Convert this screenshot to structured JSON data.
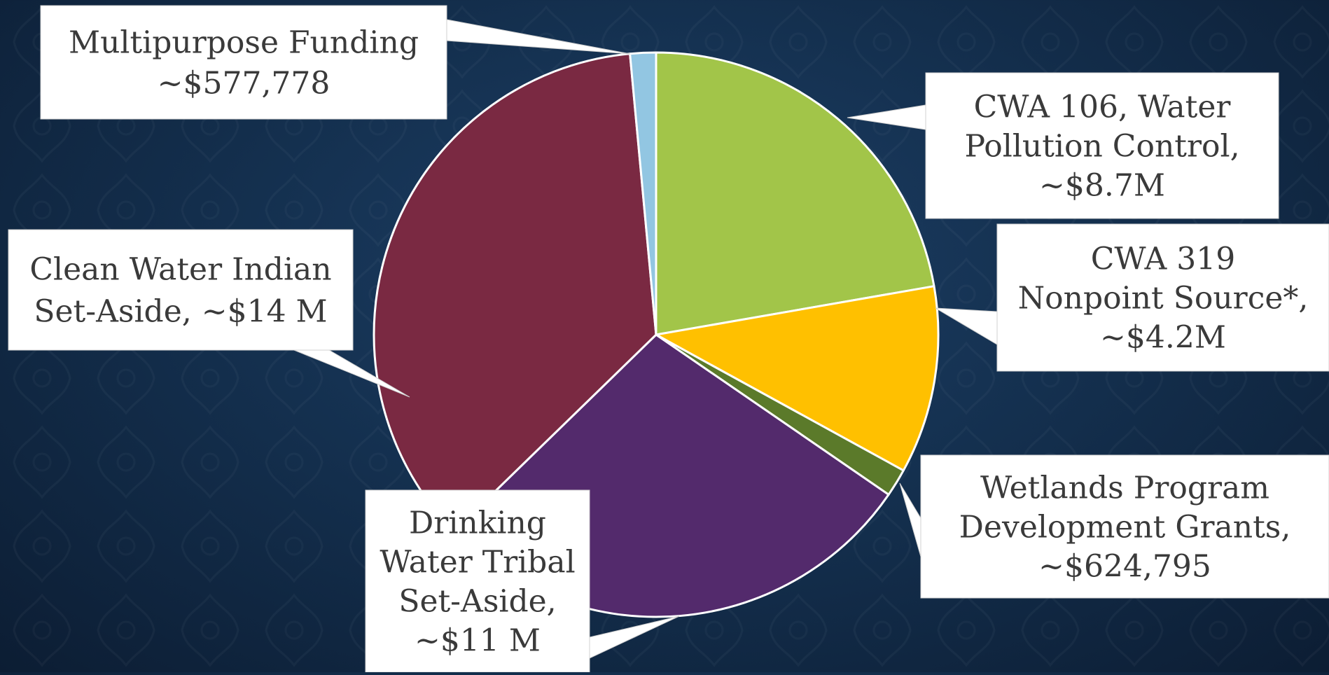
{
  "chart_data": {
    "type": "pie",
    "title": "",
    "slices": [
      {
        "label_lines": [
          "CWA 106, Water",
          "Pollution Control,",
          "~$8.7M"
        ],
        "value": 8700000,
        "color": "#a2c549"
      },
      {
        "label_lines": [
          "CWA 319",
          "Nonpoint Source*,",
          "~$4.2M"
        ],
        "value": 4200000,
        "color": "#ffc000"
      },
      {
        "label_lines": [
          "Wetlands Program",
          "Development Grants,",
          "~$624,795"
        ],
        "value": 624795,
        "color": "#5b7a2a"
      },
      {
        "label_lines": [
          "Drinking",
          "Water Tribal",
          "Set-Aside,",
          "~$11 M"
        ],
        "value": 11000000,
        "color": "#532a6c"
      },
      {
        "label_lines": [
          "Clean Water Indian",
          "Set-Aside, ~$14 M"
        ],
        "value": 14000000,
        "color": "#7a2942"
      },
      {
        "label_lines": [
          "Multipurpose Funding",
          "~$577,778"
        ],
        "value": 577778,
        "color": "#92c6e2"
      }
    ],
    "start_angle_deg": 0,
    "direction": "clockwise",
    "legend": "none",
    "slice_border_color": "#ffffff",
    "label_box_color": "#ffffff",
    "label_text_color": "#3a3a3a"
  }
}
